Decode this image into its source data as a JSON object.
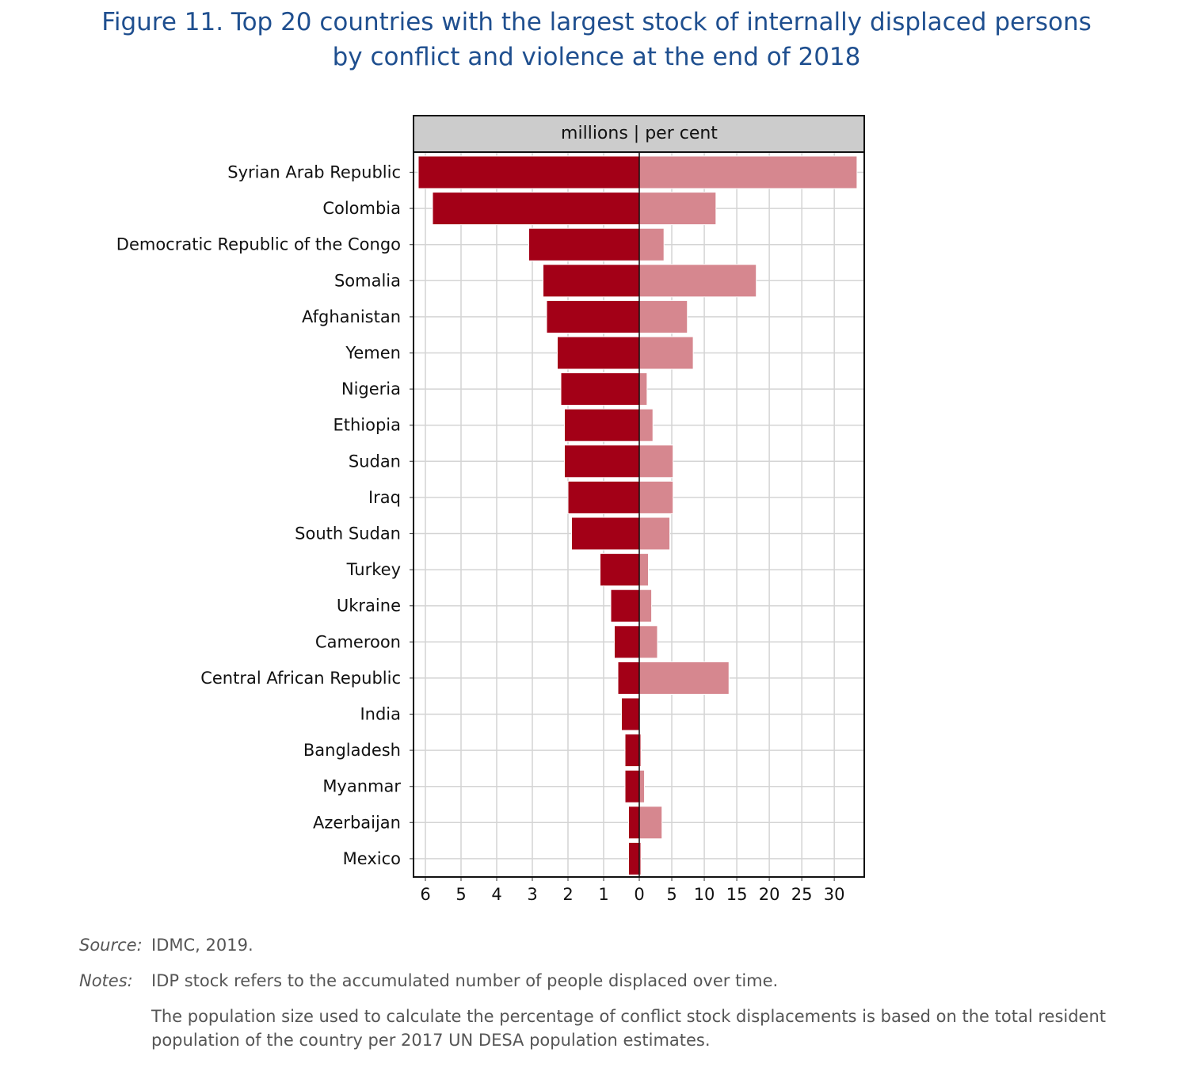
{
  "figure": {
    "title_line1": "Figure 11. Top 20 countries with the largest stock of internally displaced persons",
    "title_line2": "by conflict and violence at the end of 2018"
  },
  "chart_data": {
    "type": "bar",
    "orientation": "horizontal",
    "panel_label": "millions | per cent",
    "categories": [
      "Syrian Arab Republic",
      "Colombia",
      "Democratic Republic of the Congo",
      "Somalia",
      "Afghanistan",
      "Yemen",
      "Nigeria",
      "Ethiopia",
      "Sudan",
      "Iraq",
      "South Sudan",
      "Turkey",
      "Ukraine",
      "Cameroon",
      "Central African Republic",
      "India",
      "Bangladesh",
      "Myanmar",
      "Azerbaijan",
      "Mexico"
    ],
    "series": [
      {
        "name": "millions",
        "color": "#a30017",
        "values": [
          6.2,
          5.8,
          3.1,
          2.7,
          2.6,
          2.3,
          2.2,
          2.1,
          2.1,
          2.0,
          1.9,
          1.1,
          0.8,
          0.7,
          0.6,
          0.5,
          0.4,
          0.4,
          0.3,
          0.3
        ]
      },
      {
        "name": "per cent",
        "color": "#d6878f",
        "values": [
          33.5,
          11.8,
          3.8,
          18.0,
          7.4,
          8.3,
          1.2,
          2.1,
          5.2,
          5.2,
          4.7,
          1.4,
          1.9,
          2.8,
          13.8,
          0.04,
          0.3,
          0.8,
          3.5,
          0.3
        ]
      }
    ],
    "left_ticks": [
      "6",
      "5",
      "4",
      "3",
      "2",
      "1",
      "0"
    ],
    "right_ticks": [
      "5",
      "10",
      "15",
      "20",
      "25",
      "30"
    ],
    "left_xlim": [
      0,
      6.2
    ],
    "right_xlim": [
      0,
      34
    ],
    "grid": true
  },
  "notes": {
    "source_label": "Source:",
    "source_text": "IDMC, 2019.",
    "notes_label": "Notes:",
    "note1": "IDP stock refers to the accumulated number of people displaced over time.",
    "note2": "The population size used to calculate the percentage of conflict stock displacements is based on the total resident population of the country per 2017 UN DESA population estimates."
  }
}
